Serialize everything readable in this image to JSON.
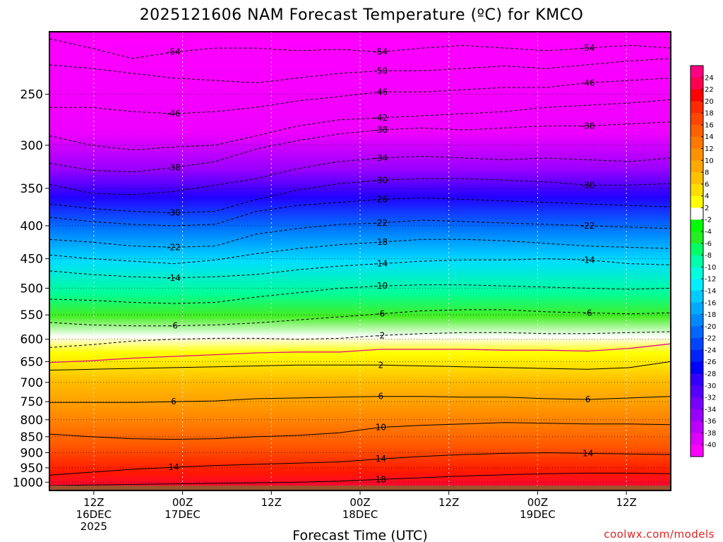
{
  "chart_data": {
    "type": "heatmap",
    "title": "2025121606 NAM Forecast Temperature (ºC) for KMCO",
    "xlabel": "Forecast Time (UTC)",
    "ylabel": "",
    "credit": "coolwx.com/models",
    "x_ticks": [
      {
        "hour": 6,
        "lines": [
          "12Z",
          "16DEC",
          "2025"
        ]
      },
      {
        "hour": 18,
        "lines": [
          "00Z",
          "17DEC"
        ]
      },
      {
        "hour": 30,
        "lines": [
          "12Z"
        ]
      },
      {
        "hour": 42,
        "lines": [
          "00Z",
          "18DEC"
        ]
      },
      {
        "hour": 54,
        "lines": [
          "12Z"
        ]
      },
      {
        "hour": 66,
        "lines": [
          "00Z",
          "19DEC"
        ]
      },
      {
        "hour": 78,
        "lines": [
          "12Z"
        ]
      }
    ],
    "xlim": [
      0,
      84
    ],
    "y_ticks": [
      "250",
      "300",
      "350",
      "400",
      "450",
      "500",
      "550",
      "600",
      "650",
      "700",
      "750",
      "800",
      "850",
      "900",
      "950",
      "1000"
    ],
    "y_values": [
      250,
      300,
      350,
      400,
      450,
      500,
      550,
      600,
      650,
      700,
      750,
      800,
      850,
      900,
      950,
      1000
    ],
    "ylim": [
      200,
      1030
    ],
    "ylog": true,
    "colorbar": {
      "labels": [
        "24",
        "22",
        "20",
        "18",
        "16",
        "14",
        "12",
        "10",
        "8",
        "6",
        "4",
        "2",
        "-2",
        "-4",
        "-6",
        "-8",
        "-10",
        "-12",
        "-14",
        "-16",
        "-18",
        "-20",
        "-22",
        "-24",
        "-26",
        "-28",
        "-30",
        "-32",
        "-34",
        "-36",
        "-38",
        "-40"
      ],
      "colors": [
        "#ff0080",
        "#ff0050",
        "#ff0000",
        "#ff2a00",
        "#ff4600",
        "#ff6000",
        "#ff7800",
        "#ff9000",
        "#ffa800",
        "#ffc000",
        "#ffdc00",
        "#ffff00",
        "#ffffff",
        "#00ff00",
        "#22ee22",
        "#00ff66",
        "#00ffaa",
        "#00ffdd",
        "#00eeff",
        "#00ccff",
        "#00aaff",
        "#0088ff",
        "#0066ff",
        "#0044ff",
        "#0022ff",
        "#0000ff",
        "#3300ff",
        "#5500ff",
        "#7700ff",
        "#9900ff",
        "#bb00ff",
        "#dd00ff",
        "#ff00ff"
      ]
    },
    "contours": [
      {
        "label": "-54",
        "dashed": true,
        "pressure": [
          205,
          212,
          220,
          215,
          212,
          212,
          214,
          213,
          215,
          212,
          210,
          212,
          214,
          212,
          210,
          212
        ]
      },
      {
        "label": "-50",
        "dashed": true,
        "pressure": [
          225,
          228,
          232,
          236,
          238,
          240,
          236,
          232,
          230,
          230,
          228,
          226,
          228,
          225,
          222,
          220
        ]
      },
      {
        "label": "-46",
        "dashed": true,
        "pressure": [
          262,
          262,
          266,
          268,
          266,
          262,
          256,
          252,
          248,
          248,
          246,
          244,
          244,
          240,
          238,
          236
        ]
      },
      {
        "label": "-42",
        "dashed": true,
        "pressure": [
          290,
          300,
          305,
          302,
          300,
          290,
          280,
          274,
          272,
          270,
          268,
          266,
          262,
          260,
          258,
          255
        ]
      },
      {
        "label": "-38",
        "dashed": true,
        "pressure": [
          320,
          328,
          330,
          325,
          318,
          304,
          295,
          288,
          284,
          282,
          284,
          282,
          280,
          280,
          278,
          276
        ]
      },
      {
        "label": "-34",
        "dashed": true,
        "pressure": [
          345,
          356,
          358,
          354,
          346,
          338,
          326,
          318,
          314,
          312,
          314,
          316,
          314,
          316,
          318,
          314
        ]
      },
      {
        "label": "-30",
        "dashed": true,
        "pressure": [
          370,
          376,
          380,
          382,
          380,
          364,
          352,
          344,
          340,
          338,
          338,
          340,
          342,
          346,
          346,
          344
        ]
      },
      {
        "label": "-26",
        "dashed": true,
        "pressure": [
          388,
          394,
          398,
          400,
          398,
          380,
          372,
          368,
          364,
          362,
          364,
          366,
          368,
          370,
          372,
          374
        ]
      },
      {
        "label": "-22",
        "dashed": true,
        "pressure": [
          420,
          424,
          430,
          432,
          430,
          412,
          404,
          398,
          396,
          392,
          394,
          396,
          398,
          400,
          402,
          404
        ]
      },
      {
        "label": "-18",
        "dashed": true,
        "pressure": [
          444,
          450,
          454,
          458,
          452,
          442,
          434,
          428,
          424,
          420,
          420,
          422,
          426,
          430,
          432,
          434
        ]
      },
      {
        "label": "-14",
        "dashed": true,
        "pressure": [
          470,
          476,
          480,
          482,
          480,
          476,
          468,
          462,
          458,
          454,
          452,
          452,
          450,
          452,
          458,
          460
        ]
      },
      {
        "label": "-10",
        "dashed": true,
        "pressure": [
          520,
          522,
          526,
          528,
          526,
          516,
          508,
          500,
          496,
          494,
          494,
          496,
          498,
          500,
          502,
          500
        ]
      },
      {
        "label": "-6",
        "dashed": true,
        "pressure": [
          565,
          570,
          572,
          572,
          570,
          566,
          560,
          554,
          548,
          542,
          540,
          540,
          544,
          546,
          548,
          546
        ]
      },
      {
        "label": "-2",
        "dashed": true,
        "pressure": [
          618,
          612,
          604,
          600,
          598,
          598,
          600,
          598,
          592,
          588,
          586,
          586,
          588,
          588,
          586,
          584
        ]
      },
      {
        "label": "",
        "dashed": false,
        "color": "#e0107a",
        "pressure": [
          652,
          648,
          642,
          638,
          634,
          630,
          628,
          628,
          622,
          622,
          622,
          624,
          624,
          626,
          620,
          610
        ]
      },
      {
        "label": "2",
        "dashed": false,
        "pressure": [
          670,
          668,
          666,
          664,
          662,
          660,
          658,
          658,
          658,
          660,
          662,
          664,
          666,
          668,
          664,
          650
        ]
      },
      {
        "label": "6",
        "dashed": false,
        "pressure": [
          752,
          752,
          752,
          750,
          748,
          742,
          740,
          738,
          736,
          736,
          738,
          738,
          742,
          744,
          740,
          736
        ]
      },
      {
        "label": "10",
        "dashed": false,
        "pressure": [
          842,
          850,
          856,
          858,
          856,
          850,
          846,
          838,
          822,
          816,
          812,
          808,
          810,
          812,
          812,
          814
        ]
      },
      {
        "label": "14",
        "dashed": false,
        "pressure": [
          975,
          965,
          955,
          948,
          942,
          938,
          934,
          930,
          920,
          912,
          906,
          902,
          900,
          902,
          904,
          906
        ]
      },
      {
        "label": "18",
        "dashed": false,
        "pressure": [
          1012,
          1010,
          1008,
          1006,
          1004,
          1002,
          1000,
          996,
          990,
          984,
          978,
          974,
          970,
          968,
          968,
          970
        ]
      }
    ],
    "surface_pressure": 1012
  }
}
